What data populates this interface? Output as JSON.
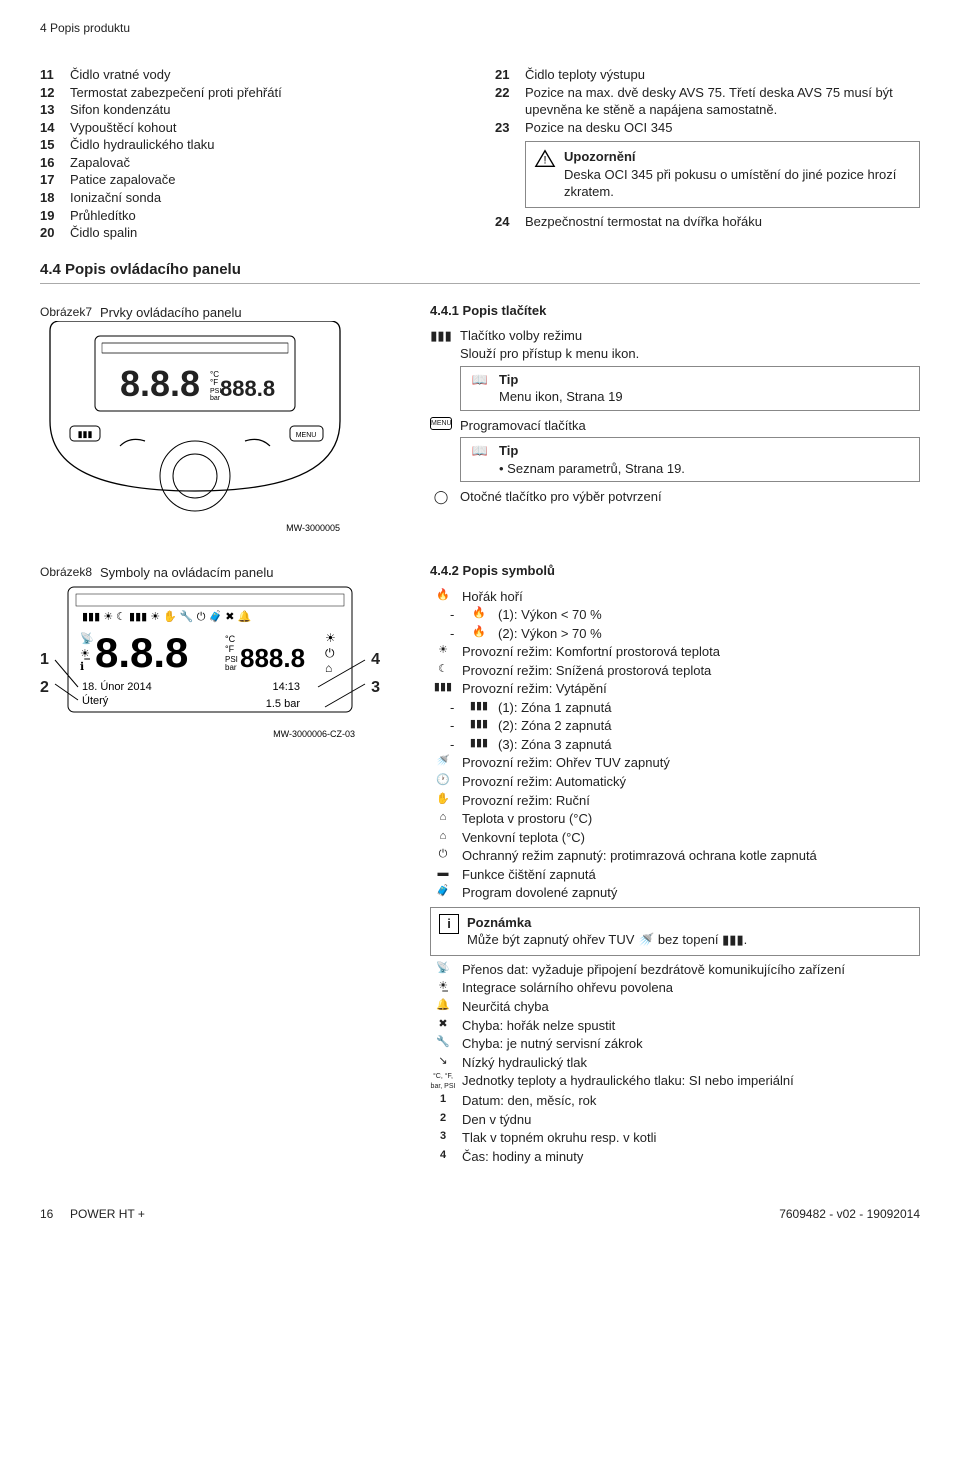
{
  "header": "4 Popis produktu",
  "left_list": [
    {
      "n": "11",
      "t": "Čidlo vratné vody"
    },
    {
      "n": "12",
      "t": "Termostat zabezpečení proti přehřátí"
    },
    {
      "n": "13",
      "t": "Sifon kondenzátu"
    },
    {
      "n": "14",
      "t": "Vypouštěcí kohout"
    },
    {
      "n": "15",
      "t": "Čidlo hydraulického tlaku"
    },
    {
      "n": "16",
      "t": "Zapalovač"
    },
    {
      "n": "17",
      "t": "Patice zapalovače"
    },
    {
      "n": "18",
      "t": "Ionizační sonda"
    },
    {
      "n": "19",
      "t": "Průhledítko"
    },
    {
      "n": "20",
      "t": "Čidlo spalin"
    }
  ],
  "right_list": [
    {
      "n": "21",
      "t": "Čidlo teploty výstupu"
    },
    {
      "n": "22",
      "t": "Pozice na max. dvě desky AVS 75. Třetí deska AVS 75 musí být upevněna ke stěně a napájena samostatně."
    },
    {
      "n": "23",
      "t": "Pozice na desku OCI 345"
    }
  ],
  "warning_title": "Upozornění",
  "warning_body": "Deska OCI 345 při pokusu o umístění do jiné pozice hrozí zkratem.",
  "item24": {
    "n": "24",
    "t": "Bezpečnostní termostat na dvířka hořáku"
  },
  "section4_4": "4.4    Popis ovládacího panelu",
  "section4_4_1": "4.4.1  Popis tlačítek",
  "fig7_label": "Obrázek7",
  "fig7_caption": "Prvky ovládacího panelu",
  "mode_btn": "Tlačítko volby režimu",
  "mode_btn_desc": "Slouží pro přístup k menu ikon.",
  "tip_label": "Tip",
  "tip1_body": "Menu ikon, Strana 19",
  "prog_btn": "Programovací tlačítka",
  "tip2_body": "• Seznam parametrů, Strana 19.",
  "rotary_btn": "Otočné tlačítko pro výběr potvrzení",
  "mw1": "MW-3000005",
  "section4_4_2": "4.4.2  Popis symbolů",
  "fig8_label": "Obrázek8",
  "fig8_caption": "Symboly na ovládacím panelu",
  "display_date": "18. Únor 2014",
  "display_time": "14:13",
  "display_day": "Úterý",
  "display_bar": "1.5 bar",
  "mw2": "MW-3000006-CZ-03",
  "symbols": [
    {
      "icon": "🔥",
      "t": "Hořák hoří",
      "sub": [
        {
          "icon": "🔥",
          "t": "(1): Výkon < 70 %"
        },
        {
          "icon": "🔥",
          "t": "(2): Výkon > 70 %"
        }
      ]
    },
    {
      "icon": "☀",
      "t": "Provozní režim: Komfortní prostorová teplota"
    },
    {
      "icon": "☾",
      "t": "Provozní režim: Snížená prostorová teplota"
    },
    {
      "icon": "▮▮▮",
      "t": "Provozní režim: Vytápění",
      "sub": [
        {
          "icon": "▮▮▮",
          "t": "(1): Zóna 1 zapnutá"
        },
        {
          "icon": "▮▮▮",
          "t": "(2): Zóna 2 zapnutá"
        },
        {
          "icon": "▮▮▮",
          "t": "(3): Zóna 3 zapnutá"
        }
      ]
    },
    {
      "icon": "🚿",
      "t": "Provozní režim: Ohřev TUV zapnutý"
    },
    {
      "icon": "🕐",
      "t": "Provozní režim: Automatický"
    },
    {
      "icon": "✋",
      "t": "Provozní režim: Ruční"
    },
    {
      "icon": "⌂",
      "t": "Teplota v prostoru (°C)"
    },
    {
      "icon": "⌂",
      "t": "Venkovní teplota (°C)"
    },
    {
      "icon": "⏻",
      "t": "Ochranný režim zapnutý: protimrazová ochrana kotle zapnutá"
    },
    {
      "icon": "▬",
      "t": "Funkce čištění zapnutá"
    },
    {
      "icon": "🧳",
      "t": "Program dovolené zapnutý"
    }
  ],
  "note_title": "Poznámka",
  "note_body_a": "Může být zapnutý ohřev TUV ",
  "note_body_b": " bez topení ",
  "symbols2": [
    {
      "icon": "📡",
      "t": "Přenos dat: vyžaduje připojení bezdrátově komunikujícího zařízení"
    },
    {
      "icon": "☀̲",
      "t": "Integrace solárního ohřevu povolena"
    },
    {
      "icon": "🔔",
      "t": "Neurčitá chyba"
    },
    {
      "icon": "✖",
      "t": "Chyba: hořák nelze spustit"
    },
    {
      "icon": "🔧",
      "t": "Chyba: je nutný servisní zákrok"
    },
    {
      "icon": "↘",
      "t": "Nízký hydraulický tlak"
    },
    {
      "icon": "°C, °F,\nbar, PSI",
      "t": "Jednotky teploty a hydraulického tlaku: SI nebo imperiální"
    }
  ],
  "nums": [
    {
      "n": "1",
      "t": "Datum: den, měsíc, rok"
    },
    {
      "n": "2",
      "t": "Den v týdnu"
    },
    {
      "n": "3",
      "t": "Tlak v topném okruhu resp. v kotli"
    },
    {
      "n": "4",
      "t": "Čas: hodiny a minuty"
    }
  ],
  "footer_page": "16",
  "footer_model": "POWER HT +",
  "footer_doc": "7609482 - v02 - 19092014",
  "menu_label": "MENU"
}
